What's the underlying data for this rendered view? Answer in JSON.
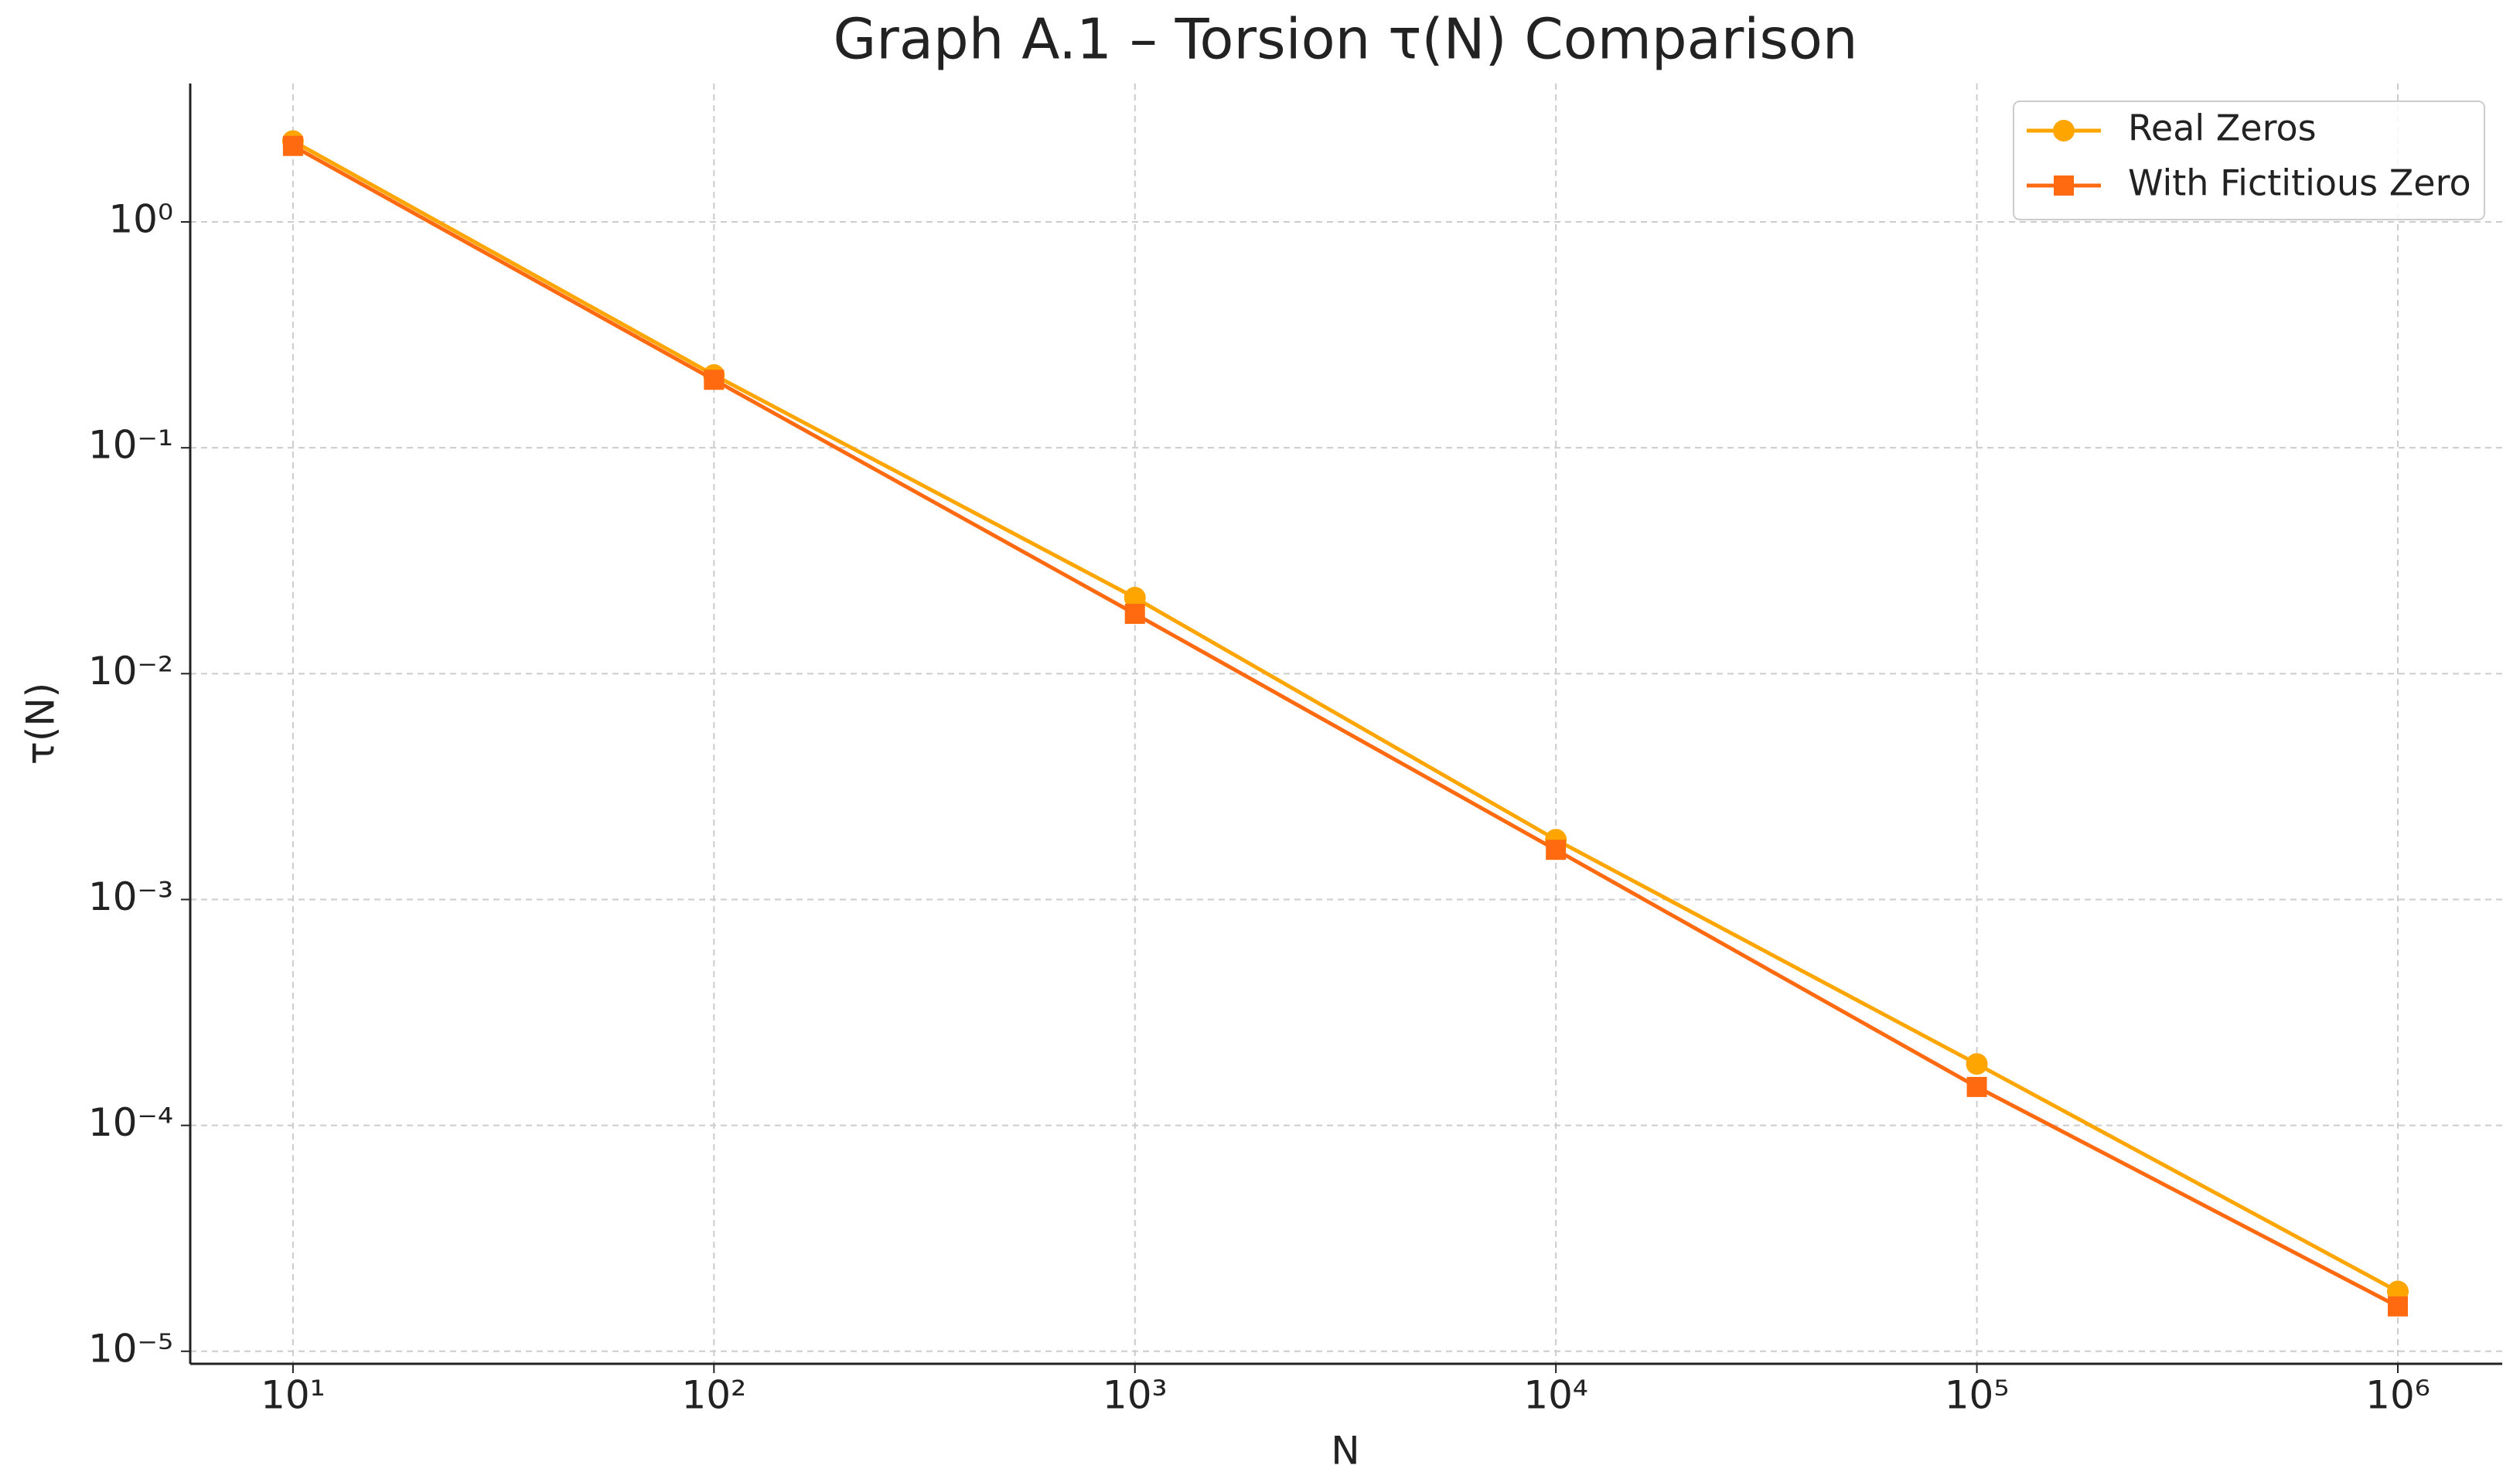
{
  "chart_data": {
    "type": "line",
    "title": "Graph A.1 – Torsion τ(N) Comparison",
    "x_label": "N",
    "y_label": "τ(N)",
    "x": [
      10,
      100,
      1000,
      10000,
      100000,
      1000000
    ],
    "series": [
      {
        "name": "Real Zeros",
        "color": "#ffa500",
        "marker": "circle",
        "values": [
          2.28,
          0.21,
          0.0217,
          0.00184,
          0.000187,
          1.84e-05
        ]
      },
      {
        "name": "With Fictitious Zero",
        "color": "#ff6a10",
        "marker": "square",
        "values": [
          2.17,
          0.2,
          0.0184,
          0.00166,
          0.000148,
          1.58e-05
        ]
      }
    ],
    "xscale": "log",
    "yscale": "log",
    "xlim": [
      5.7,
      1770000
    ],
    "ylim": [
      8.8e-06,
      4.1
    ],
    "xticks": [
      {
        "value": 10,
        "label": "10¹"
      },
      {
        "value": 100,
        "label": "10²"
      },
      {
        "value": 1000,
        "label": "10³"
      },
      {
        "value": 10000,
        "label": "10⁴"
      },
      {
        "value": 100000,
        "label": "10⁵"
      },
      {
        "value": 1000000,
        "label": "10⁶"
      }
    ],
    "yticks": [
      {
        "value": 1e-05,
        "label": "10⁻⁵"
      },
      {
        "value": 0.0001,
        "label": "10⁻⁴"
      },
      {
        "value": 0.001,
        "label": "10⁻³"
      },
      {
        "value": 0.01,
        "label": "10⁻²"
      },
      {
        "value": 0.1,
        "label": "10⁻¹"
      },
      {
        "value": 1,
        "label": "10⁰"
      }
    ],
    "grid": true,
    "legend": "upper right"
  }
}
